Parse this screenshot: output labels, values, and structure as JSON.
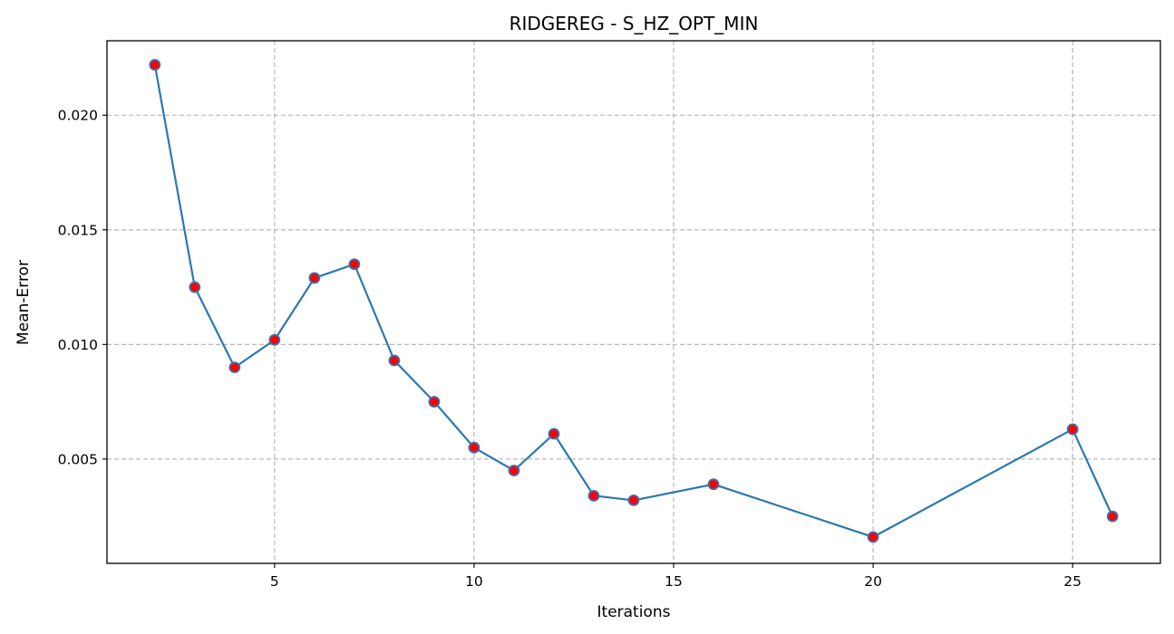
{
  "chart_data": {
    "type": "line",
    "title": "RIDGEREG - S_HZ_OPT_MIN",
    "xlabel": "Iterations",
    "ylabel": "Mean-Error",
    "xlim": [
      0.8,
      27.2
    ],
    "ylim": [
      0.00045,
      0.02325
    ],
    "xticks": [
      5,
      10,
      15,
      20,
      25
    ],
    "yticks": [
      0.005,
      0.01,
      0.015,
      0.02
    ],
    "ytick_labels": [
      "0.005",
      "0.010",
      "0.015",
      "0.020"
    ],
    "grid": true,
    "line_color": "#2c77b0",
    "marker_face_color": "#ff0000",
    "marker_edge_color": "#3f6fb0",
    "series": [
      {
        "x": [
          2,
          3,
          4,
          5,
          6,
          7,
          8,
          9,
          10,
          11,
          12,
          13,
          14,
          16,
          20,
          25,
          26
        ],
        "values": [
          0.0222,
          0.0125,
          0.009,
          0.0102,
          0.0129,
          0.0135,
          0.0093,
          0.0075,
          0.0055,
          0.0045,
          0.0061,
          0.0034,
          0.0032,
          0.0039,
          0.0016,
          0.0063,
          0.0025
        ]
      }
    ]
  }
}
